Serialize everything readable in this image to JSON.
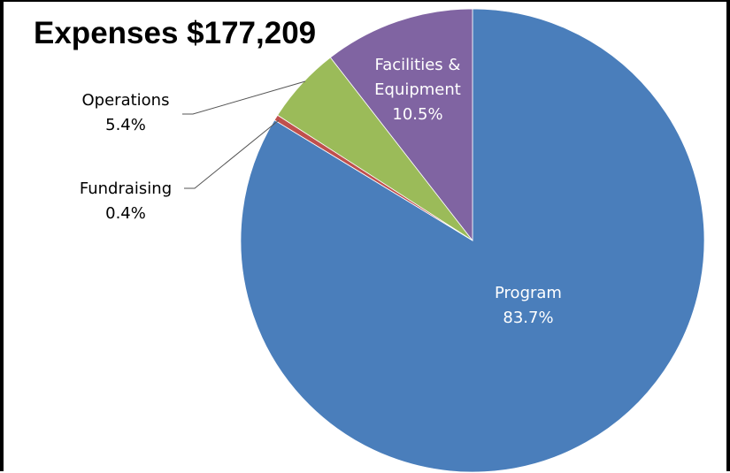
{
  "chart_data": {
    "type": "pie",
    "title": "Expenses $177,209",
    "start_angle_deg": 0,
    "direction": "clockwise",
    "slices": [
      {
        "name": "Program",
        "value": 83.7,
        "label": "83.7%",
        "color": "#4A7EBB",
        "label_color": "#ffffff"
      },
      {
        "name": "Fundraising",
        "value": 0.4,
        "label": "0.4%",
        "color": "#C0504D",
        "label_color": "#000000"
      },
      {
        "name": "Operations",
        "value": 5.4,
        "label": "5.4%",
        "color": "#9BBB59",
        "label_color": "#000000"
      },
      {
        "name": "Facilities &",
        "name_line2": "Equipment",
        "value": 10.5,
        "label": "10.5%",
        "color": "#8064A2",
        "label_color": "#ffffff"
      }
    ]
  }
}
